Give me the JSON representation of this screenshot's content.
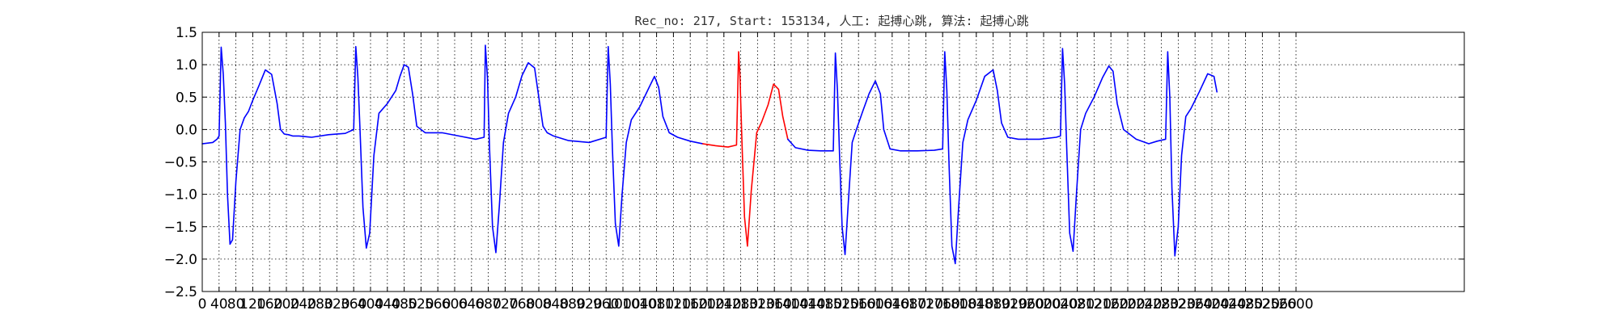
{
  "chart_data": {
    "type": "line",
    "title": "Rec_no: 217, Start: 153134, 人工: 起搏心跳, 算法: 起搏心跳",
    "xlabel": "",
    "ylabel": "",
    "xlim": [
      0,
      3000
    ],
    "ylim": [
      -2.5,
      1.5
    ],
    "yticks": [
      -2.5,
      -2.0,
      -1.5,
      -1.0,
      -0.5,
      0.0,
      0.5,
      1.0,
      1.5
    ],
    "ytick_labels": [
      "−2.5",
      "−2.0",
      "−1.5",
      "−1.0",
      "−0.5",
      "0.0",
      "0.5",
      "1.0",
      "1.5"
    ],
    "xticks": [
      0,
      40,
      80,
      120,
      160,
      200,
      240,
      280,
      320,
      360,
      400,
      440,
      480,
      520,
      560,
      600,
      640,
      680,
      720,
      760,
      800,
      840,
      880,
      920,
      960,
      1000,
      1040,
      1080,
      1120,
      1160,
      1200,
      1240,
      1280,
      1320,
      1360,
      1400,
      1440,
      1480,
      1520,
      1560,
      1600,
      1640,
      1680,
      1720,
      1760,
      1800,
      1840,
      1880,
      1920,
      1960,
      2000,
      2040,
      2080,
      2120,
      2160,
      2200,
      2240,
      2280,
      2320,
      2360,
      2400,
      2440,
      2480,
      2520,
      2560,
      2600
    ],
    "grid": true,
    "series": [
      {
        "color": "#0000ff",
        "x": [
          0,
          25,
          35,
          40,
          45,
          50,
          55,
          60,
          66,
          72,
          80,
          90,
          100,
          110,
          120,
          135,
          150,
          165,
          178,
          186,
          195,
          205,
          215,
          230,
          260,
          300,
          340,
          360,
          365,
          370,
          375,
          382,
          390,
          398,
          408,
          420,
          440,
          460,
          470,
          480,
          490,
          500,
          510,
          530,
          570,
          610,
          650,
          670,
          673,
          678,
          683,
          690,
          698,
          706,
          716,
          728,
          745,
          760,
          775,
          790,
          800,
          810,
          820,
          835,
          870,
          920,
          960,
          965,
          970,
          975,
          982,
          990,
          998,
          1008,
          1020,
          1040,
          1060,
          1075,
          1085,
          1095,
          1110,
          1130,
          1160,
          1190
        ],
        "y": [
          -0.22,
          -0.2,
          -0.15,
          -0.1,
          1.27,
          0.85,
          0.1,
          -1.0,
          -1.77,
          -1.7,
          -0.8,
          0.0,
          0.18,
          0.28,
          0.45,
          0.68,
          0.92,
          0.85,
          0.4,
          0.0,
          -0.07,
          -0.08,
          -0.1,
          -0.1,
          -0.12,
          -0.08,
          -0.06,
          0.0,
          1.28,
          0.8,
          0.0,
          -1.2,
          -1.83,
          -1.6,
          -0.4,
          0.25,
          0.4,
          0.6,
          0.82,
          1.0,
          0.96,
          0.55,
          0.05,
          -0.05,
          -0.05,
          -0.1,
          -0.15,
          -0.12,
          1.3,
          0.8,
          -0.3,
          -1.5,
          -1.9,
          -1.2,
          -0.2,
          0.25,
          0.5,
          0.83,
          1.03,
          0.95,
          0.5,
          0.05,
          -0.05,
          -0.1,
          -0.17,
          -0.2,
          -0.12,
          1.28,
          0.7,
          -0.3,
          -1.45,
          -1.8,
          -1.0,
          -0.2,
          0.15,
          0.35,
          0.62,
          0.82,
          0.65,
          0.2,
          -0.05,
          -0.12,
          -0.18,
          -0.22
        ]
      },
      {
        "color": "#ff0000",
        "x": [
          1190,
          1220,
          1250,
          1270,
          1275,
          1278,
          1283,
          1289,
          1296,
          1305,
          1318,
          1330,
          1345,
          1358,
          1370,
          1380,
          1392
        ],
        "y": [
          -0.22,
          -0.25,
          -0.27,
          -0.24,
          1.2,
          0.85,
          -0.2,
          -1.35,
          -1.8,
          -0.95,
          -0.05,
          0.12,
          0.38,
          0.7,
          0.62,
          0.2,
          -0.15
        ]
      },
      {
        "color": "#0000ff",
        "x": [
          1392,
          1410,
          1440,
          1470,
          1500,
          1505,
          1510,
          1515,
          1521,
          1528,
          1536,
          1545,
          1555,
          1570,
          1585,
          1600,
          1612,
          1620,
          1635,
          1660,
          1700,
          1740,
          1760,
          1765,
          1770,
          1775,
          1782,
          1790,
          1798,
          1808,
          1820,
          1840,
          1860,
          1880,
          1890,
          1900,
          1915,
          1940,
          1990,
          2030,
          2040,
          2045,
          2050,
          2055,
          2062,
          2070,
          2078,
          2088,
          2100,
          2120,
          2140,
          2155,
          2165,
          2175,
          2190,
          2220,
          2250,
          2270,
          2290,
          2295,
          2300,
          2305,
          2312,
          2320,
          2328,
          2338,
          2350,
          2370,
          2390,
          2405,
          2412
        ],
        "y": [
          -0.15,
          -0.28,
          -0.32,
          -0.33,
          -0.33,
          1.18,
          0.6,
          -0.4,
          -1.5,
          -1.93,
          -1.1,
          -0.2,
          0.0,
          0.28,
          0.55,
          0.75,
          0.55,
          0.0,
          -0.3,
          -0.33,
          -0.33,
          -0.32,
          -0.3,
          1.2,
          0.6,
          -0.5,
          -1.8,
          -2.07,
          -1.2,
          -0.2,
          0.15,
          0.45,
          0.82,
          0.92,
          0.6,
          0.1,
          -0.12,
          -0.15,
          -0.15,
          -0.12,
          -0.1,
          1.25,
          0.7,
          -0.3,
          -1.6,
          -1.88,
          -1.0,
          0.0,
          0.25,
          0.5,
          0.8,
          0.98,
          0.9,
          0.4,
          0.0,
          -0.15,
          -0.22,
          -0.18,
          -0.15,
          1.2,
          0.5,
          -0.9,
          -1.95,
          -1.5,
          -0.4,
          0.2,
          0.32,
          0.58,
          0.86,
          0.82,
          0.58
        ]
      }
    ]
  }
}
